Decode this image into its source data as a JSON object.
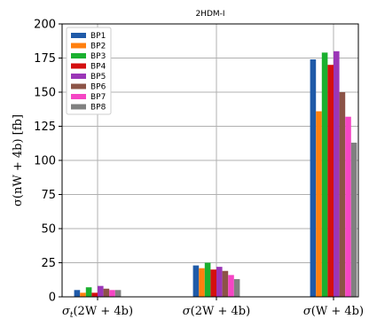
{
  "chart_data": {
    "type": "bar",
    "title": "2HDM-I",
    "ylabel": "σ(nW + 4b) [fb]",
    "categories": [
      "σ_t(2W + 4b)",
      "σ(2W + 4b)",
      "σ(W + 4b)"
    ],
    "ylim": [
      0,
      200
    ],
    "yticks": [
      0,
      25,
      50,
      75,
      100,
      125,
      150,
      175,
      200
    ],
    "grid": true,
    "legend_position": "top-left",
    "series": [
      {
        "name": "BP1",
        "color": "#1f5aa8",
        "values": [
          5,
          23,
          174
        ]
      },
      {
        "name": "BP2",
        "color": "#ff7f0e",
        "values": [
          3,
          21,
          136
        ]
      },
      {
        "name": "BP3",
        "color": "#1ab02f",
        "values": [
          7,
          25,
          179
        ]
      },
      {
        "name": "BP4",
        "color": "#d40f0f",
        "values": [
          3,
          20,
          170
        ]
      },
      {
        "name": "BP5",
        "color": "#9b36b7",
        "values": [
          8,
          22,
          180
        ]
      },
      {
        "name": "BP6",
        "color": "#8c5347",
        "values": [
          6,
          19,
          150
        ]
      },
      {
        "name": "BP7",
        "color": "#f545c4",
        "values": [
          5,
          16,
          132
        ]
      },
      {
        "name": "BP8",
        "color": "#808080",
        "values": [
          5,
          13,
          113
        ]
      }
    ]
  }
}
